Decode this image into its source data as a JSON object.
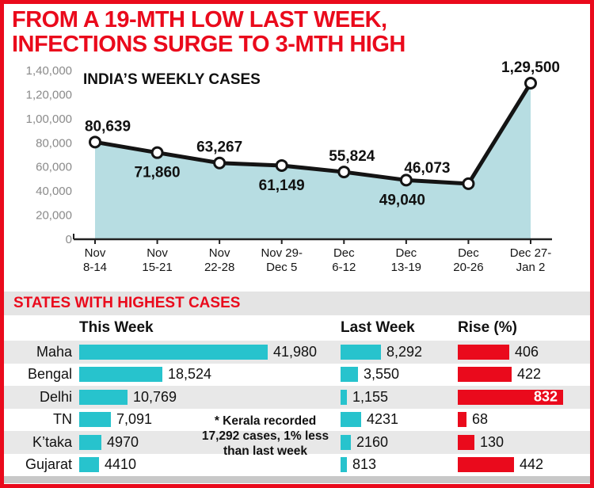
{
  "headline": {
    "line1": "FROM A 19-MTH LOW LAST WEEK,",
    "line2": "INFECTIONS SURGE TO 3-MTH HIGH"
  },
  "chart_data": {
    "type": "area",
    "title": "INDIA’S WEEKLY CASES",
    "categories": [
      [
        "Nov",
        "8-14"
      ],
      [
        "Nov",
        "15-21"
      ],
      [
        "Nov",
        "22-28"
      ],
      [
        "Nov 29-",
        "Dec 5"
      ],
      [
        "Dec",
        "6-12"
      ],
      [
        "Dec",
        "13-19"
      ],
      [
        "Dec",
        "20-26"
      ],
      [
        "Dec 27-",
        "Jan 2"
      ]
    ],
    "values": [
      80639,
      71860,
      63267,
      61149,
      55824,
      49040,
      46073,
      129500
    ],
    "labels": [
      "80,639",
      "71,860",
      "63,267",
      "61,149",
      "55,824",
      "49,040",
      "46,073",
      "1,29,500"
    ],
    "label_pos": [
      "above",
      "below",
      "above",
      "below",
      "above",
      "below",
      "above",
      "above"
    ],
    "label_dx": [
      16,
      0,
      0,
      0,
      10,
      -5,
      -52,
      0
    ],
    "ylim": [
      0,
      140000
    ],
    "yticks": [
      0,
      20000,
      40000,
      60000,
      80000,
      100000,
      120000,
      140000
    ],
    "ytick_labels": [
      "0",
      "20,000",
      "40,000",
      "60,000",
      "80,000",
      "1,00,000",
      "1,20,000",
      "1,40,000"
    ],
    "grid": false,
    "legend": "none",
    "colors": {
      "area": "#b7dde2",
      "line": "#141414",
      "marker_fill": "#ffffff",
      "tick_text": "#8a8a8a"
    }
  },
  "states": {
    "section_title": "STATES WITH HIGHEST CASES",
    "columns": {
      "this_week": "This Week",
      "last_week": "Last Week",
      "rise": "Rise (%)"
    },
    "rows": [
      {
        "state": "Maha",
        "this_week": "41,980",
        "this_week_val": 41980,
        "last_week": "8,292",
        "last_week_val": 8292,
        "rise": "406",
        "rise_val": 406
      },
      {
        "state": "Bengal",
        "this_week": "18,524",
        "this_week_val": 18524,
        "last_week": "3,550",
        "last_week_val": 3550,
        "rise": "422",
        "rise_val": 422
      },
      {
        "state": "Delhi",
        "this_week": "10,769",
        "this_week_val": 10769,
        "last_week": "1,155",
        "last_week_val": 1155,
        "rise": "832",
        "rise_val": 832
      },
      {
        "state": "TN",
        "this_week": "7,091",
        "this_week_val": 7091,
        "last_week": "4231",
        "last_week_val": 4231,
        "rise": "68",
        "rise_val": 68
      },
      {
        "state": "K’taka",
        "this_week": "4970",
        "this_week_val": 4970,
        "last_week": "2160",
        "last_week_val": 2160,
        "rise": "130",
        "rise_val": 130
      },
      {
        "state": "Gujarat",
        "this_week": "4410",
        "this_week_val": 4410,
        "last_week": "813",
        "last_week_val": 813,
        "rise": "442",
        "rise_val": 442
      }
    ],
    "note_lines": [
      "* Kerala recorded",
      "17,292 cases, 1% less",
      "than last week"
    ],
    "colors": {
      "bar_teal": "#27c3cd",
      "bar_red": "#ea0a1c",
      "headline_red": "#ea0a1c"
    }
  }
}
